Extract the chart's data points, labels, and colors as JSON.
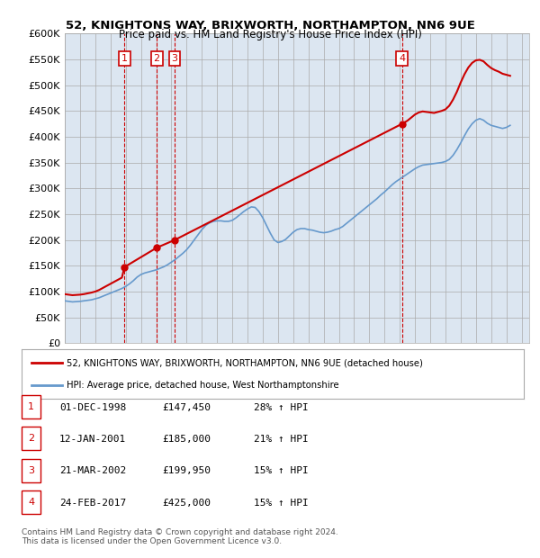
{
  "title": "52, KNIGHTONS WAY, BRIXWORTH, NORTHAMPTON, NN6 9UE",
  "subtitle": "Price paid vs. HM Land Registry's House Price Index (HPI)",
  "ylabel": "",
  "background_color": "#dce6f1",
  "plot_bg_color": "#dce6f1",
  "fig_bg_color": "#ffffff",
  "ylim": [
    0,
    600000
  ],
  "yticks": [
    0,
    50000,
    100000,
    150000,
    200000,
    250000,
    300000,
    350000,
    400000,
    450000,
    500000,
    550000,
    600000
  ],
  "xlim_start": 1995.0,
  "xlim_end": 2025.5,
  "sale_dates": [
    1998.917,
    2001.04,
    2002.22,
    2017.15
  ],
  "sale_prices": [
    147450,
    185000,
    199950,
    425000
  ],
  "sale_labels": [
    "1",
    "2",
    "3",
    "4"
  ],
  "table_rows": [
    [
      "1",
      "01-DEC-1998",
      "£147,450",
      "28% ↑ HPI"
    ],
    [
      "2",
      "12-JAN-2001",
      "£185,000",
      "21% ↑ HPI"
    ],
    [
      "3",
      "21-MAR-2002",
      "£199,950",
      "15% ↑ HPI"
    ],
    [
      "4",
      "24-FEB-2017",
      "£425,000",
      "15% ↑ HPI"
    ]
  ],
  "legend_line1": "52, KNIGHTONS WAY, BRIXWORTH, NORTHAMPTON, NN6 9UE (detached house)",
  "legend_line2": "HPI: Average price, detached house, West Northamptonshire",
  "footer": "Contains HM Land Registry data © Crown copyright and database right 2024.\nThis data is licensed under the Open Government Licence v3.0.",
  "red_line_color": "#cc0000",
  "blue_line_color": "#6699cc",
  "sale_marker_color": "#cc0000",
  "dashed_line_color": "#cc0000",
  "hpi_data_x": [
    1995.0,
    1995.25,
    1995.5,
    1995.75,
    1996.0,
    1996.25,
    1996.5,
    1996.75,
    1997.0,
    1997.25,
    1997.5,
    1997.75,
    1998.0,
    1998.25,
    1998.5,
    1998.75,
    1999.0,
    1999.25,
    1999.5,
    1999.75,
    2000.0,
    2000.25,
    2000.5,
    2000.75,
    2001.0,
    2001.25,
    2001.5,
    2001.75,
    2002.0,
    2002.25,
    2002.5,
    2002.75,
    2003.0,
    2003.25,
    2003.5,
    2003.75,
    2004.0,
    2004.25,
    2004.5,
    2004.75,
    2005.0,
    2005.25,
    2005.5,
    2005.75,
    2006.0,
    2006.25,
    2006.5,
    2006.75,
    2007.0,
    2007.25,
    2007.5,
    2007.75,
    2008.0,
    2008.25,
    2008.5,
    2008.75,
    2009.0,
    2009.25,
    2009.5,
    2009.75,
    2010.0,
    2010.25,
    2010.5,
    2010.75,
    2011.0,
    2011.25,
    2011.5,
    2011.75,
    2012.0,
    2012.25,
    2012.5,
    2012.75,
    2013.0,
    2013.25,
    2013.5,
    2013.75,
    2014.0,
    2014.25,
    2014.5,
    2014.75,
    2015.0,
    2015.25,
    2015.5,
    2015.75,
    2016.0,
    2016.25,
    2016.5,
    2016.75,
    2017.0,
    2017.25,
    2017.5,
    2017.75,
    2018.0,
    2018.25,
    2018.5,
    2018.75,
    2019.0,
    2019.25,
    2019.5,
    2019.75,
    2020.0,
    2020.25,
    2020.5,
    2020.75,
    2021.0,
    2021.25,
    2021.5,
    2021.75,
    2022.0,
    2022.25,
    2022.5,
    2022.75,
    2023.0,
    2023.25,
    2023.5,
    2023.75,
    2024.0,
    2024.25
  ],
  "hpi_data_y": [
    82000,
    81000,
    80000,
    80500,
    81000,
    82000,
    83000,
    84000,
    86000,
    88000,
    91000,
    94000,
    97000,
    100000,
    103000,
    106000,
    110000,
    115000,
    121000,
    128000,
    133000,
    136000,
    138000,
    140000,
    142000,
    145000,
    148000,
    152000,
    157000,
    162000,
    168000,
    174000,
    181000,
    190000,
    200000,
    210000,
    220000,
    228000,
    233000,
    236000,
    237000,
    237000,
    236000,
    236000,
    238000,
    243000,
    249000,
    255000,
    260000,
    264000,
    263000,
    255000,
    243000,
    228000,
    213000,
    200000,
    195000,
    197000,
    201000,
    208000,
    215000,
    220000,
    222000,
    222000,
    220000,
    219000,
    217000,
    215000,
    214000,
    215000,
    217000,
    220000,
    222000,
    226000,
    232000,
    238000,
    244000,
    250000,
    256000,
    262000,
    268000,
    274000,
    280000,
    287000,
    293000,
    300000,
    307000,
    313000,
    318000,
    323000,
    328000,
    333000,
    338000,
    342000,
    345000,
    346000,
    347000,
    348000,
    349000,
    350000,
    352000,
    356000,
    364000,
    375000,
    388000,
    402000,
    415000,
    425000,
    432000,
    435000,
    432000,
    426000,
    422000,
    420000,
    418000,
    416000,
    418000,
    422000
  ],
  "price_line_x": [
    1995.0,
    1995.25,
    1995.5,
    1995.75,
    1996.0,
    1996.25,
    1996.5,
    1996.75,
    1997.0,
    1997.25,
    1997.5,
    1997.75,
    1998.0,
    1998.25,
    1998.5,
    1998.75,
    1998.917,
    2001.04,
    2002.22,
    2017.15,
    2017.5,
    2017.75,
    2018.0,
    2018.25,
    2018.5,
    2018.75,
    2019.0,
    2019.25,
    2019.5,
    2019.75,
    2020.0,
    2020.25,
    2020.5,
    2020.75,
    2021.0,
    2021.25,
    2021.5,
    2021.75,
    2022.0,
    2022.25,
    2022.5,
    2022.75,
    2023.0,
    2023.25,
    2023.5,
    2023.75,
    2024.0,
    2024.25
  ],
  "price_line_y": [
    95000,
    94000,
    93000,
    93500,
    94000,
    95000,
    96500,
    98000,
    100000,
    103000,
    107000,
    111000,
    115000,
    119000,
    123000,
    127000,
    147450,
    185000,
    199950,
    425000,
    431000,
    437000,
    443000,
    447000,
    449000,
    448000,
    447000,
    446000,
    448000,
    450000,
    453000,
    460000,
    472000,
    487000,
    505000,
    521000,
    534000,
    543000,
    548000,
    549000,
    546000,
    539000,
    533000,
    529000,
    526000,
    522000,
    520000,
    518000
  ]
}
